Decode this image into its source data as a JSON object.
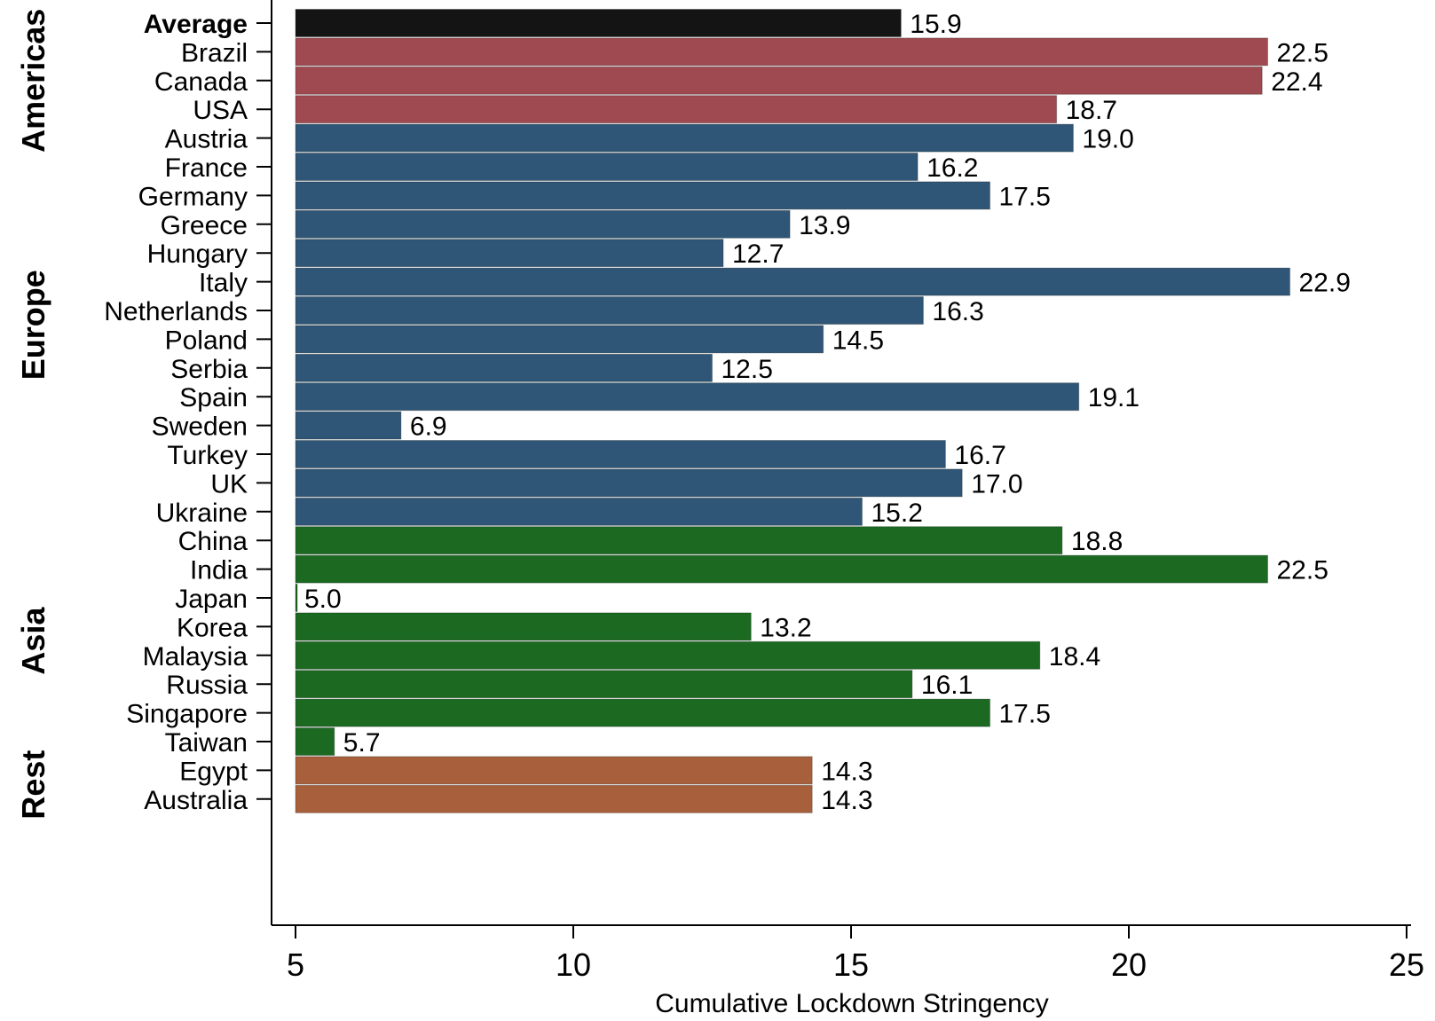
{
  "chart_data": {
    "type": "bar",
    "orientation": "horizontal",
    "xlabel": "Cumulative Lockdown Stringency",
    "ylabel": "",
    "xlim": [
      5,
      25
    ],
    "xticks": [
      "5",
      "10",
      "15",
      "20",
      "25"
    ],
    "grid": false,
    "legend": "none",
    "groups": [
      {
        "name": "",
        "color": "#141414",
        "items": [
          {
            "label": "Average",
            "value": 15.9,
            "value_label": "15.9",
            "bold": true
          }
        ]
      },
      {
        "name": "Americas",
        "color": "#9e4a50",
        "items": [
          {
            "label": "Brazil",
            "value": 22.5,
            "value_label": "22.5"
          },
          {
            "label": "Canada",
            "value": 22.4,
            "value_label": "22.4"
          },
          {
            "label": "USA",
            "value": 18.7,
            "value_label": "18.7"
          }
        ]
      },
      {
        "name": "Europe",
        "color": "#2f5677",
        "items": [
          {
            "label": "Austria",
            "value": 19.0,
            "value_label": "19.0"
          },
          {
            "label": "France",
            "value": 16.2,
            "value_label": "16.2"
          },
          {
            "label": "Germany",
            "value": 17.5,
            "value_label": "17.5"
          },
          {
            "label": "Greece",
            "value": 13.9,
            "value_label": "13.9"
          },
          {
            "label": "Hungary",
            "value": 12.7,
            "value_label": "12.7"
          },
          {
            "label": "Italy",
            "value": 22.9,
            "value_label": "22.9"
          },
          {
            "label": "Netherlands",
            "value": 16.3,
            "value_label": "16.3"
          },
          {
            "label": "Poland",
            "value": 14.5,
            "value_label": "14.5"
          },
          {
            "label": "Serbia",
            "value": 12.5,
            "value_label": "12.5"
          },
          {
            "label": "Spain",
            "value": 19.1,
            "value_label": "19.1"
          },
          {
            "label": "Sweden",
            "value": 6.9,
            "value_label": "6.9"
          },
          {
            "label": "Turkey",
            "value": 16.7,
            "value_label": "16.7"
          },
          {
            "label": "UK",
            "value": 17.0,
            "value_label": "17.0"
          },
          {
            "label": "Ukraine",
            "value": 15.2,
            "value_label": "15.2"
          }
        ]
      },
      {
        "name": "Asia",
        "color": "#1c6a22",
        "items": [
          {
            "label": "China",
            "value": 18.8,
            "value_label": "18.8"
          },
          {
            "label": "India",
            "value": 22.5,
            "value_label": "22.5"
          },
          {
            "label": "Japan",
            "value": 5.0,
            "value_label": "5.0"
          },
          {
            "label": "Korea",
            "value": 13.2,
            "value_label": "13.2"
          },
          {
            "label": "Malaysia",
            "value": 18.4,
            "value_label": "18.4"
          },
          {
            "label": "Russia",
            "value": 16.1,
            "value_label": "16.1"
          },
          {
            "label": "Singapore",
            "value": 17.5,
            "value_label": "17.5"
          },
          {
            "label": "Taiwan",
            "value": 5.7,
            "value_label": "5.7"
          }
        ]
      },
      {
        "name": "Rest",
        "color": "#a8603c",
        "items": [
          {
            "label": "Egypt",
            "value": 14.3,
            "value_label": "14.3"
          },
          {
            "label": "Australia",
            "value": 14.3,
            "value_label": "14.3"
          }
        ]
      }
    ]
  }
}
